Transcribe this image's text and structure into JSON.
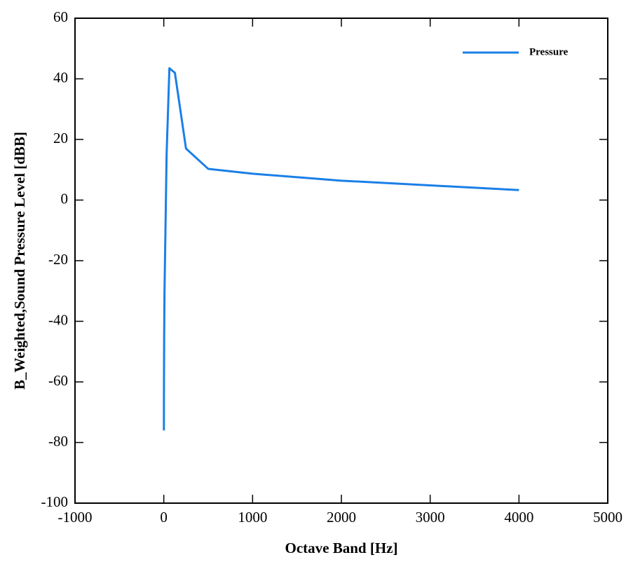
{
  "chart_data": {
    "type": "line",
    "x_label": "Octave Band [Hz]",
    "y_label": "B_Weighted,Sound Pressure Level [dBB]",
    "x": [
      1,
      2,
      4,
      8,
      16,
      31.5,
      63,
      125,
      250,
      500,
      1000,
      2000,
      4000
    ],
    "series": [
      {
        "name": "Pressure",
        "color": "#1a7fe6",
        "values": [
          -76,
          -60,
          -45,
          -30,
          -15,
          15,
          43.5,
          42,
          17,
          10.3,
          8.7,
          6.4,
          3.3
        ]
      }
    ],
    "xlim": [
      -1000,
      5000
    ],
    "xticks": [
      -1000,
      0,
      1000,
      2000,
      3000,
      4000,
      5000
    ],
    "ylim": [
      -100,
      60
    ],
    "yticks": [
      -100,
      -80,
      -60,
      -40,
      -20,
      0,
      20,
      40,
      60
    ],
    "grid": false,
    "legend": "top-right"
  }
}
